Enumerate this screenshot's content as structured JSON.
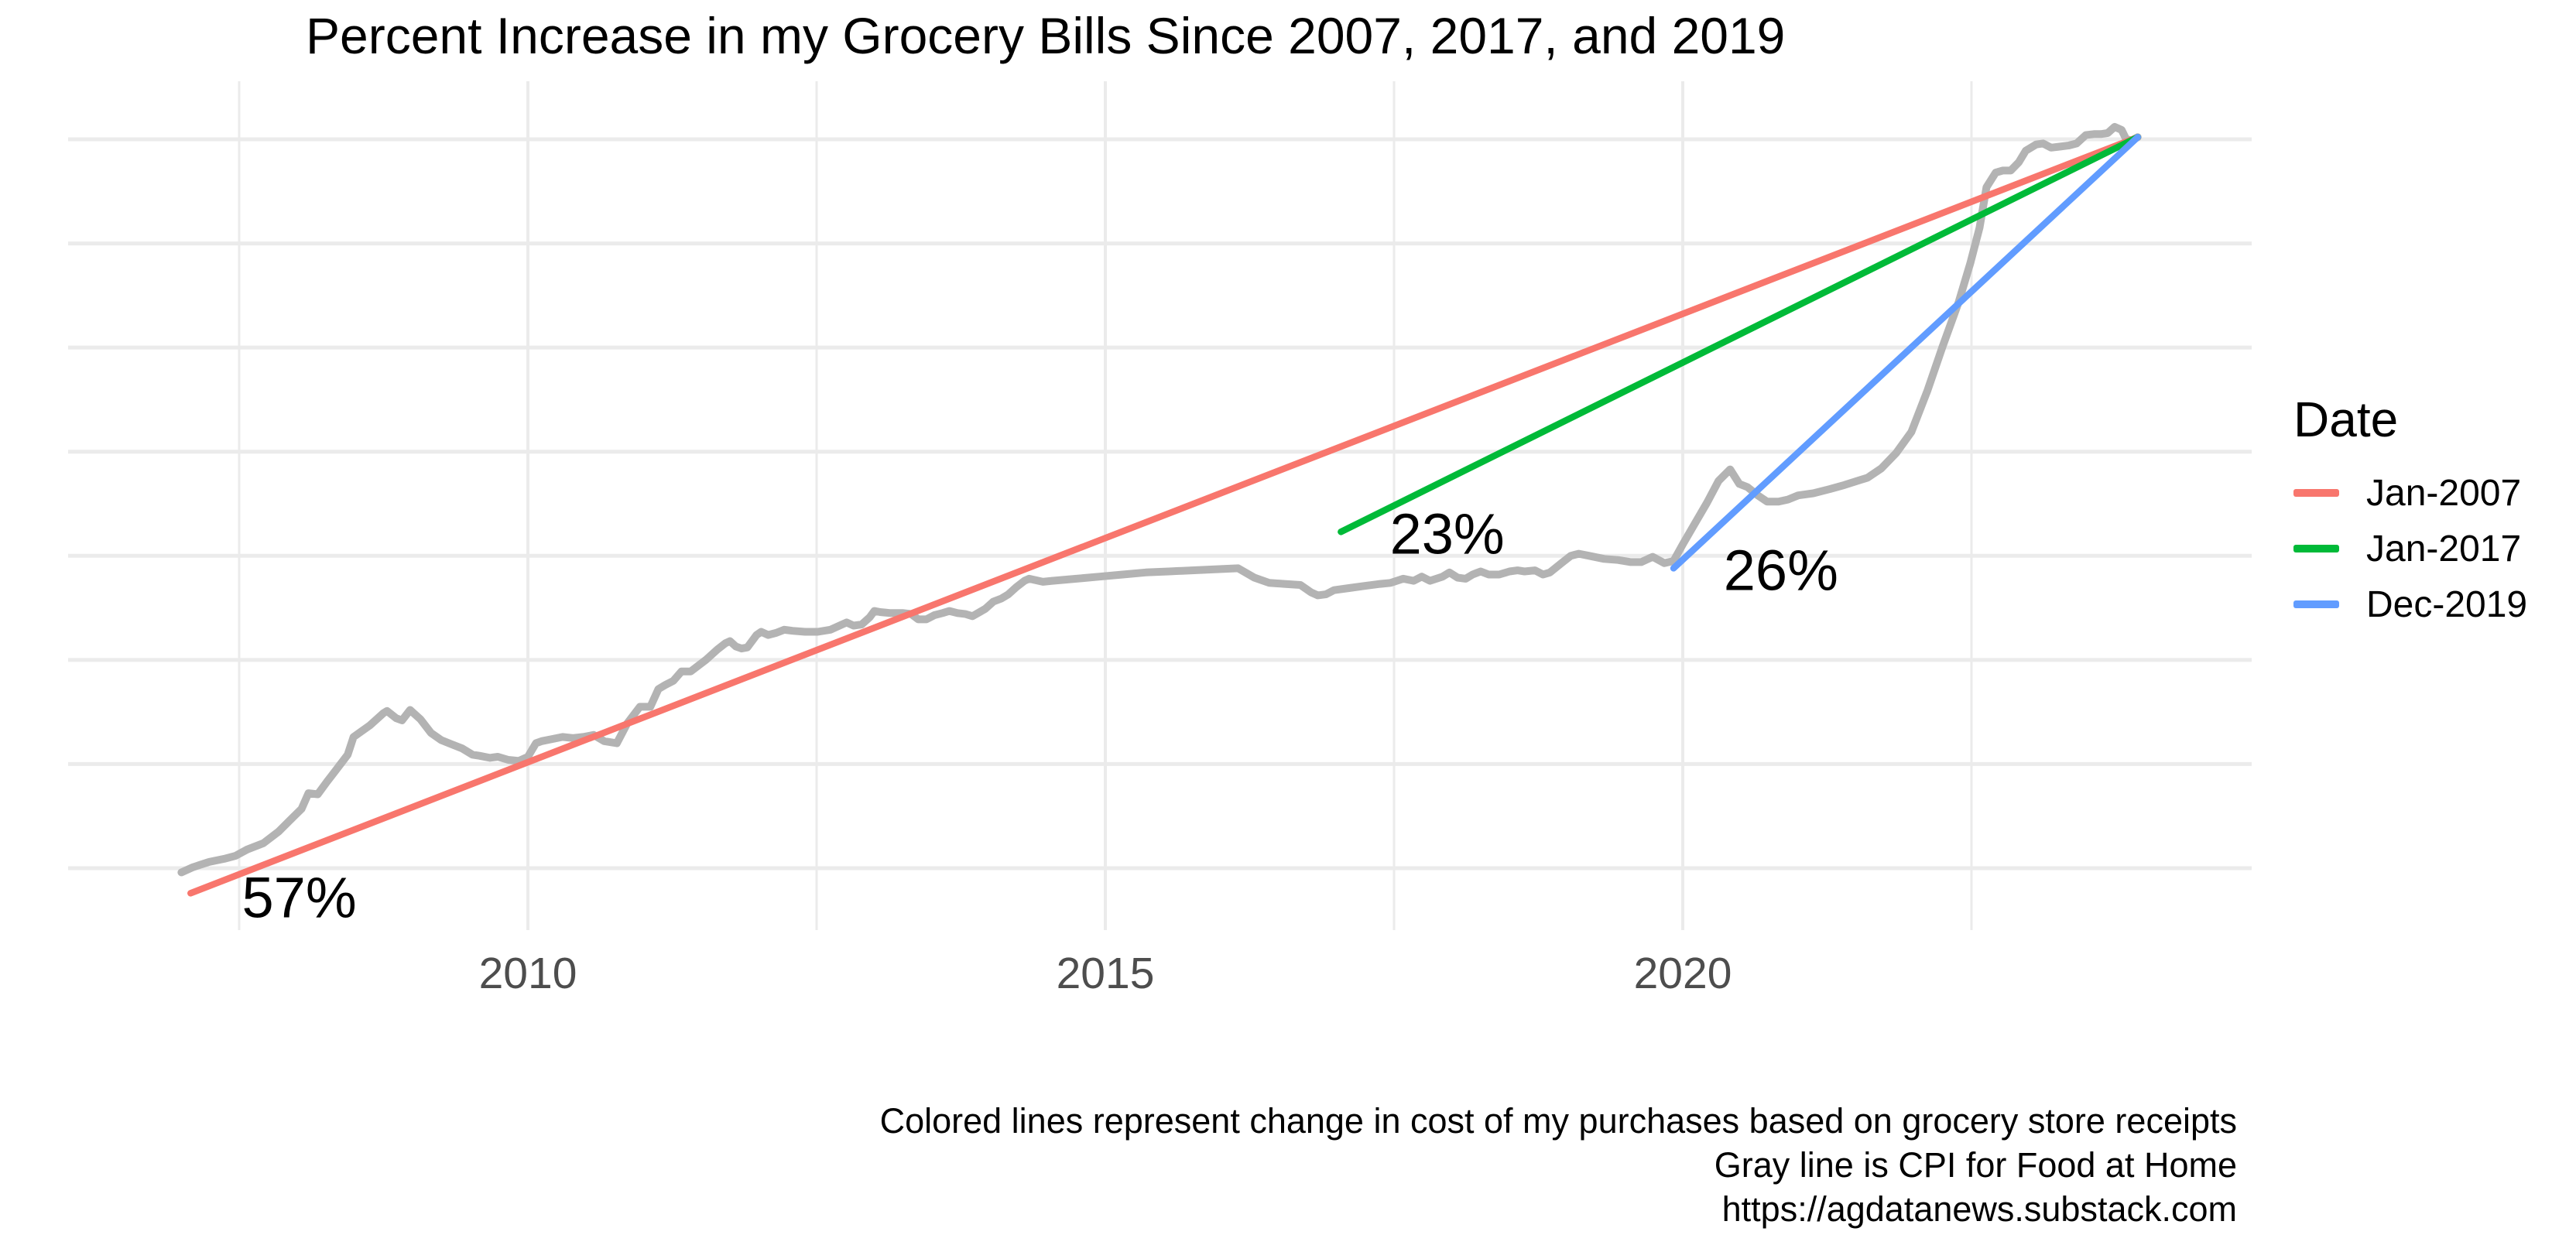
{
  "title": "Percent Increase in my Grocery Bills Since 2007, 2017, and 2019",
  "caption": {
    "line1": "Colored lines represent change in cost of my purchases based on grocery store receipts",
    "line2": "Gray line is CPI for Food at Home",
    "line3": "https://agdatanews.substack.com"
  },
  "chart_data": {
    "type": "line",
    "title": "Percent Increase in my Grocery Bills Since 2007, 2017, and 2019",
    "xlabel": "",
    "ylabel": "",
    "grid": true,
    "x_axis": {
      "tick_labels": [
        "2010",
        "2015",
        "2020"
      ],
      "tick_years": [
        2010,
        2015,
        2020
      ],
      "minor_gridline_years": [
        2007.5,
        2012.5,
        2017.5,
        2022.5
      ],
      "range_years": [
        2006.02,
        2024.93
      ]
    },
    "y_axis": {
      "unit": "percent increase (no labels shown)",
      "gridline_values": [
        0,
        10,
        20,
        30,
        40,
        50,
        60,
        70
      ],
      "range": [
        -5.9,
        75.6
      ]
    },
    "legend": {
      "title": "Date",
      "position": "right",
      "entries": [
        {
          "label": "Jan-2007",
          "color": "#F8766D"
        },
        {
          "label": "Jan-2017",
          "color": "#00BA38"
        },
        {
          "label": "Dec-2019",
          "color": "#619CFF"
        }
      ]
    },
    "annotations": [
      {
        "text": "57%",
        "year": 2008.02,
        "value": -2.8
      },
      {
        "text": "23%",
        "year": 2017.96,
        "value": 32.1
      },
      {
        "text": "26%",
        "year": 2020.85,
        "value": 28.6
      }
    ],
    "series": [
      {
        "name": "CPI for Food at Home",
        "color": "#B3B3B3",
        "kind": "curve",
        "width": 10,
        "points": [
          [
            2007.0,
            -0.4
          ],
          [
            2007.1,
            0.1
          ],
          [
            2007.24,
            0.6
          ],
          [
            2007.37,
            0.9
          ],
          [
            2007.47,
            1.2
          ],
          [
            2007.57,
            1.8
          ],
          [
            2007.71,
            2.4
          ],
          [
            2007.84,
            3.5
          ],
          [
            2007.94,
            4.6
          ],
          [
            2008.04,
            5.7
          ],
          [
            2008.1,
            7.2
          ],
          [
            2008.18,
            7.1
          ],
          [
            2008.26,
            8.3
          ],
          [
            2008.33,
            9.3
          ],
          [
            2008.44,
            10.9
          ],
          [
            2008.49,
            12.6
          ],
          [
            2008.63,
            13.7
          ],
          [
            2008.75,
            14.9
          ],
          [
            2008.78,
            15.1
          ],
          [
            2008.86,
            14.4
          ],
          [
            2008.91,
            14.2
          ],
          [
            2008.98,
            15.2
          ],
          [
            2009.07,
            14.3
          ],
          [
            2009.16,
            13.0
          ],
          [
            2009.25,
            12.3
          ],
          [
            2009.34,
            11.9
          ],
          [
            2009.43,
            11.5
          ],
          [
            2009.52,
            10.9
          ],
          [
            2009.58,
            10.8
          ],
          [
            2009.67,
            10.6
          ],
          [
            2009.74,
            10.7
          ],
          [
            2009.83,
            10.4
          ],
          [
            2009.92,
            10.3
          ],
          [
            2010.0,
            10.7
          ],
          [
            2010.07,
            12.0
          ],
          [
            2010.12,
            12.2
          ],
          [
            2010.21,
            12.4
          ],
          [
            2010.3,
            12.6
          ],
          [
            2010.39,
            12.5
          ],
          [
            2010.48,
            12.6
          ],
          [
            2010.57,
            12.8
          ],
          [
            2010.66,
            12.2
          ],
          [
            2010.77,
            12.0
          ],
          [
            2010.86,
            13.9
          ],
          [
            2010.97,
            15.5
          ],
          [
            2011.06,
            15.5
          ],
          [
            2011.13,
            17.2
          ],
          [
            2011.19,
            17.6
          ],
          [
            2011.26,
            18.0
          ],
          [
            2011.33,
            18.9
          ],
          [
            2011.41,
            18.9
          ],
          [
            2011.54,
            20.0
          ],
          [
            2011.64,
            21.0
          ],
          [
            2011.71,
            21.6
          ],
          [
            2011.75,
            21.8
          ],
          [
            2011.8,
            21.3
          ],
          [
            2011.85,
            21.1
          ],
          [
            2011.9,
            21.2
          ],
          [
            2011.98,
            22.4
          ],
          [
            2012.02,
            22.7
          ],
          [
            2012.08,
            22.4
          ],
          [
            2012.15,
            22.6
          ],
          [
            2012.22,
            22.9
          ],
          [
            2012.29,
            22.8
          ],
          [
            2012.4,
            22.7
          ],
          [
            2012.51,
            22.7
          ],
          [
            2012.62,
            22.9
          ],
          [
            2012.72,
            23.4
          ],
          [
            2012.76,
            23.6
          ],
          [
            2012.82,
            23.3
          ],
          [
            2012.89,
            23.4
          ],
          [
            2012.96,
            24.1
          ],
          [
            2013.0,
            24.7
          ],
          [
            2013.05,
            24.6
          ],
          [
            2013.14,
            24.5
          ],
          [
            2013.25,
            24.5
          ],
          [
            2013.32,
            24.4
          ],
          [
            2013.38,
            23.9
          ],
          [
            2013.45,
            23.9
          ],
          [
            2013.52,
            24.3
          ],
          [
            2013.59,
            24.5
          ],
          [
            2013.65,
            24.7
          ],
          [
            2013.72,
            24.5
          ],
          [
            2013.79,
            24.4
          ],
          [
            2013.85,
            24.2
          ],
          [
            2013.96,
            24.9
          ],
          [
            2014.03,
            25.6
          ],
          [
            2014.1,
            25.9
          ],
          [
            2014.16,
            26.3
          ],
          [
            2014.23,
            27.0
          ],
          [
            2014.3,
            27.6
          ],
          [
            2014.34,
            27.8
          ],
          [
            2014.46,
            27.5
          ],
          [
            2014.54,
            27.6
          ],
          [
            2014.75,
            27.8
          ],
          [
            2014.95,
            28.0
          ],
          [
            2015.15,
            28.2
          ],
          [
            2015.35,
            28.4
          ],
          [
            2015.55,
            28.5
          ],
          [
            2015.75,
            28.6
          ],
          [
            2015.95,
            28.7
          ],
          [
            2016.15,
            28.8
          ],
          [
            2016.29,
            27.9
          ],
          [
            2016.42,
            27.4
          ],
          [
            2016.55,
            27.3
          ],
          [
            2016.69,
            27.2
          ],
          [
            2016.78,
            26.5
          ],
          [
            2016.84,
            26.2
          ],
          [
            2016.91,
            26.3
          ],
          [
            2016.98,
            26.7
          ],
          [
            2017.11,
            26.9
          ],
          [
            2017.24,
            27.1
          ],
          [
            2017.38,
            27.3
          ],
          [
            2017.47,
            27.4
          ],
          [
            2017.58,
            27.8
          ],
          [
            2017.67,
            27.6
          ],
          [
            2017.74,
            28.0
          ],
          [
            2017.81,
            27.6
          ],
          [
            2017.92,
            28.0
          ],
          [
            2017.98,
            28.4
          ],
          [
            2018.05,
            27.9
          ],
          [
            2018.12,
            27.8
          ],
          [
            2018.18,
            28.2
          ],
          [
            2018.25,
            28.5
          ],
          [
            2018.32,
            28.2
          ],
          [
            2018.41,
            28.2
          ],
          [
            2018.5,
            28.5
          ],
          [
            2018.57,
            28.6
          ],
          [
            2018.63,
            28.5
          ],
          [
            2018.72,
            28.6
          ],
          [
            2018.79,
            28.2
          ],
          [
            2018.85,
            28.4
          ],
          [
            2018.95,
            29.3
          ],
          [
            2019.03,
            30.0
          ],
          [
            2019.1,
            30.2
          ],
          [
            2019.19,
            30.0
          ],
          [
            2019.32,
            29.7
          ],
          [
            2019.44,
            29.6
          ],
          [
            2019.55,
            29.4
          ],
          [
            2019.64,
            29.4
          ],
          [
            2019.74,
            29.9
          ],
          [
            2019.84,
            29.3
          ],
          [
            2019.92,
            29.5
          ],
          [
            2020.0,
            31.1
          ],
          [
            2020.11,
            33.2
          ],
          [
            2020.21,
            35.1
          ],
          [
            2020.31,
            37.2
          ],
          [
            2020.41,
            38.3
          ],
          [
            2020.49,
            36.9
          ],
          [
            2020.56,
            36.6
          ],
          [
            2020.65,
            35.8
          ],
          [
            2020.73,
            35.2
          ],
          [
            2020.83,
            35.2
          ],
          [
            2020.91,
            35.4
          ],
          [
            2021.0,
            35.8
          ],
          [
            2021.13,
            36.0
          ],
          [
            2021.27,
            36.4
          ],
          [
            2021.4,
            36.8
          ],
          [
            2021.54,
            37.3
          ],
          [
            2021.6,
            37.5
          ],
          [
            2021.72,
            38.4
          ],
          [
            2021.85,
            39.9
          ],
          [
            2021.98,
            41.9
          ],
          [
            2022.12,
            45.9
          ],
          [
            2022.25,
            50.1
          ],
          [
            2022.39,
            54.4
          ],
          [
            2022.49,
            58.1
          ],
          [
            2022.57,
            61.5
          ],
          [
            2022.63,
            65.4
          ],
          [
            2022.71,
            66.8
          ],
          [
            2022.77,
            67.0
          ],
          [
            2022.84,
            67.0
          ],
          [
            2022.91,
            67.8
          ],
          [
            2022.97,
            68.9
          ],
          [
            2023.06,
            69.5
          ],
          [
            2023.12,
            69.6
          ],
          [
            2023.19,
            69.2
          ],
          [
            2023.27,
            69.3
          ],
          [
            2023.34,
            69.4
          ],
          [
            2023.41,
            69.6
          ],
          [
            2023.49,
            70.4
          ],
          [
            2023.56,
            70.5
          ],
          [
            2023.62,
            70.5
          ],
          [
            2023.68,
            70.6
          ],
          [
            2023.74,
            71.2
          ],
          [
            2023.8,
            70.9
          ],
          [
            2023.84,
            70.0
          ],
          [
            2023.89,
            69.9
          ],
          [
            2023.94,
            70.2
          ]
        ]
      },
      {
        "name": "Jan-2007",
        "color": "#F8766D",
        "kind": "segment",
        "width": 8.5,
        "label": "57%",
        "points": [
          [
            2007.08,
            -2.4
          ],
          [
            2023.94,
            70.2
          ]
        ]
      },
      {
        "name": "Jan-2017",
        "color": "#00BA38",
        "kind": "segment",
        "width": 8.5,
        "label": "23%",
        "points": [
          [
            2017.04,
            32.3
          ],
          [
            2023.94,
            70.2
          ]
        ]
      },
      {
        "name": "Dec-2019",
        "color": "#619CFF",
        "kind": "segment",
        "width": 8.5,
        "label": "26%",
        "points": [
          [
            2019.92,
            28.8
          ],
          [
            2023.94,
            70.2
          ]
        ]
      }
    ],
    "gridline_color": "#EBEBEB",
    "axis_text_color": "#4d4d4d"
  }
}
